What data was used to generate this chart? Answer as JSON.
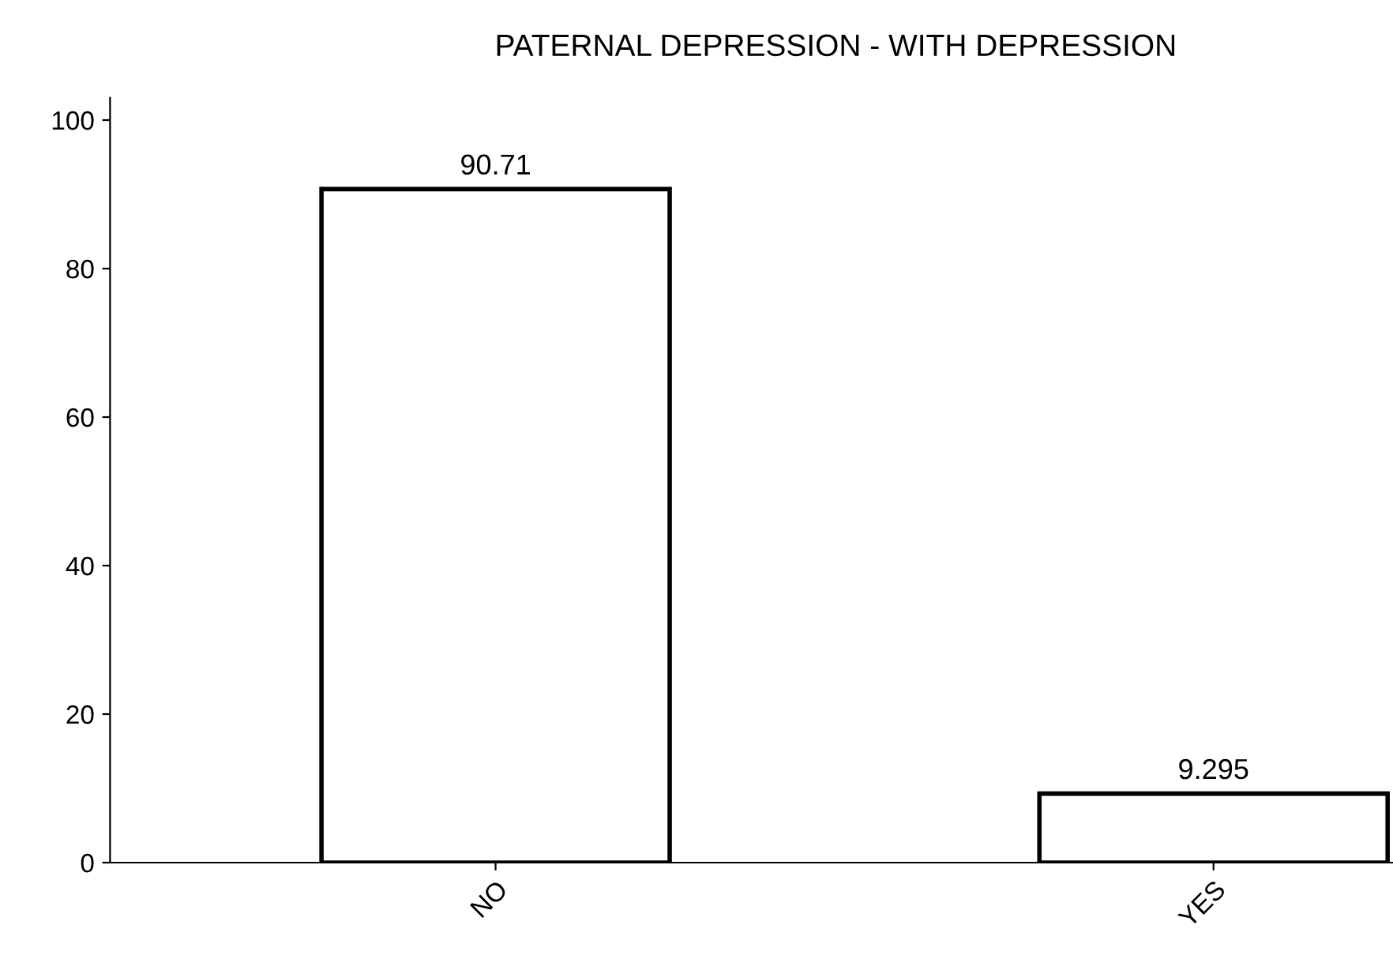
{
  "chart_data": {
    "type": "bar",
    "title": "PATERNAL DEPRESSION - WITH DEPRESSION",
    "categories": [
      "NO",
      "YES"
    ],
    "values": [
      90.71,
      9.295
    ],
    "color": "#ffffff",
    "ylim": [
      0,
      103
    ],
    "yticks": [
      0,
      20,
      40,
      60,
      80,
      100
    ],
    "grid": false,
    "data_labels": true
  }
}
